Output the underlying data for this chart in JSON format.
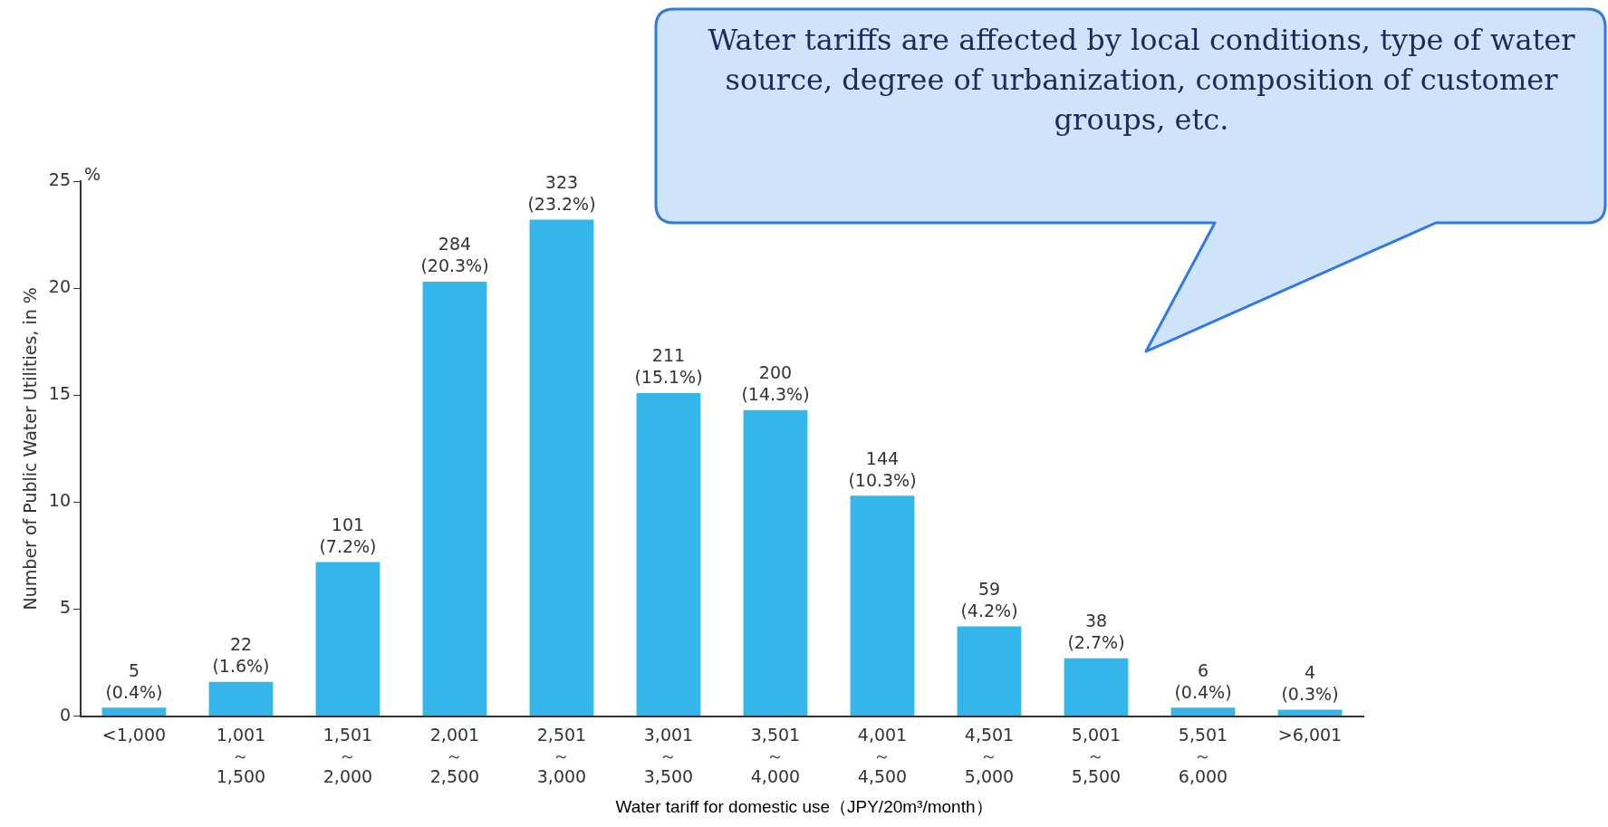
{
  "chart_data": {
    "type": "bar",
    "ylabel": "Number of Public Water Utilities, in %",
    "xlabel": "Water tariff for domestic  use（JPY/20m³/month）",
    "categories": [
      "<1,000",
      "1,001\n～\n1,500",
      "1,501\n～\n2,000",
      "2,001\n～\n2,500",
      "2,501\n～\n3,000",
      "3,001\n～\n3,500",
      "3,501\n～\n4,000",
      "4,001\n～\n4,500",
      "4,501\n～\n5,000",
      "5,001\n～\n5,500",
      "5,501\n～\n6,000",
      ">6,001"
    ],
    "values": [
      0.4,
      1.6,
      7.2,
      20.3,
      23.2,
      15.1,
      14.3,
      10.3,
      4.2,
      2.7,
      0.4,
      0.3
    ],
    "value_labels": [
      "5\n(0.4%)",
      "22\n(1.6%)",
      "101\n(7.2%)",
      "284\n(20.3%)",
      "323\n(23.2%)",
      "211\n(15.1%)",
      "200\n(14.3%)",
      "144\n(10.3%)",
      "59\n(4.2%)",
      "38\n(2.7%)",
      "6\n(0.4%)",
      "4\n(0.3%)"
    ],
    "color": "#35b6ea",
    "ylim": [
      0,
      25
    ],
    "yticks": [
      0,
      5,
      10,
      15,
      20,
      25
    ],
    "grid": false,
    "legend": false,
    "annotations": [
      "%",
      "Water tariffs are affected by local conditions, type of water source, degree of urbanization, composition of customer groups, etc."
    ]
  }
}
